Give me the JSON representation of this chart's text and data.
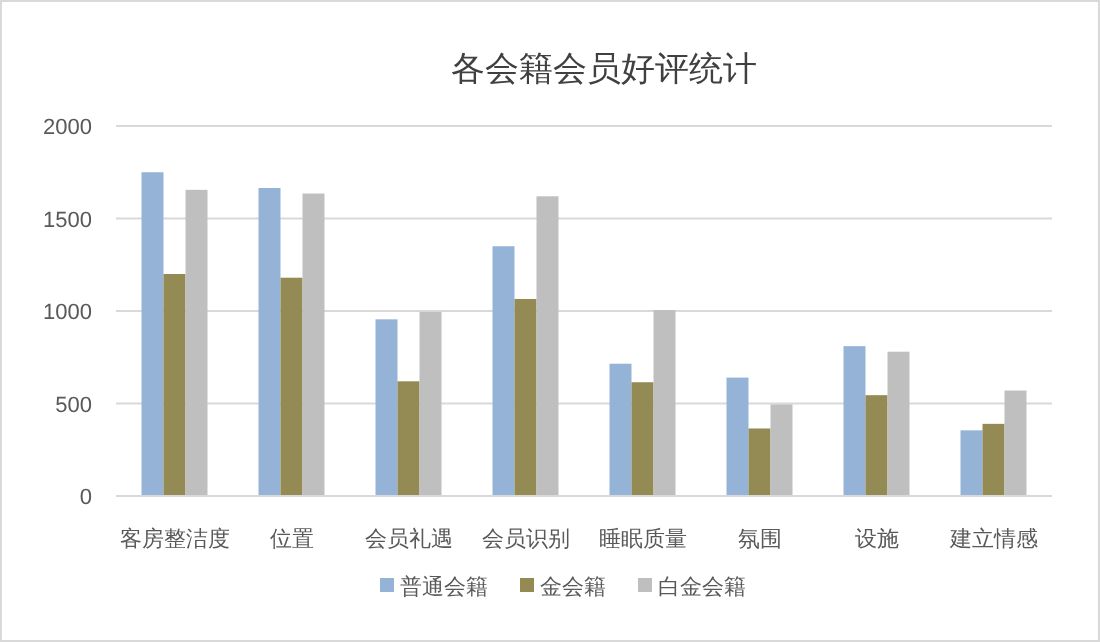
{
  "chart_data": {
    "type": "bar",
    "title": "各会籍会员好评统计",
    "categories": [
      "客房整洁度",
      "位置",
      "会员礼遇",
      "会员识别",
      "睡眠质量",
      "氛围",
      "设施",
      "建立情感"
    ],
    "series": [
      {
        "name": "普通会籍",
        "color": "#95b3d7",
        "values": [
          1750,
          1665,
          955,
          1350,
          715,
          640,
          810,
          355
        ]
      },
      {
        "name": "金会籍",
        "color": "#948a54",
        "values": [
          1200,
          1180,
          620,
          1065,
          615,
          365,
          545,
          390
        ]
      },
      {
        "name": "白金会籍",
        "color": "#bfbfbf",
        "values": [
          1655,
          1635,
          995,
          1620,
          1005,
          495,
          780,
          570
        ]
      }
    ],
    "ylim": [
      0,
      2000
    ],
    "yticks": [
      0,
      500,
      1000,
      1500,
      2000
    ],
    "grid": "y",
    "legend": "bottom"
  }
}
